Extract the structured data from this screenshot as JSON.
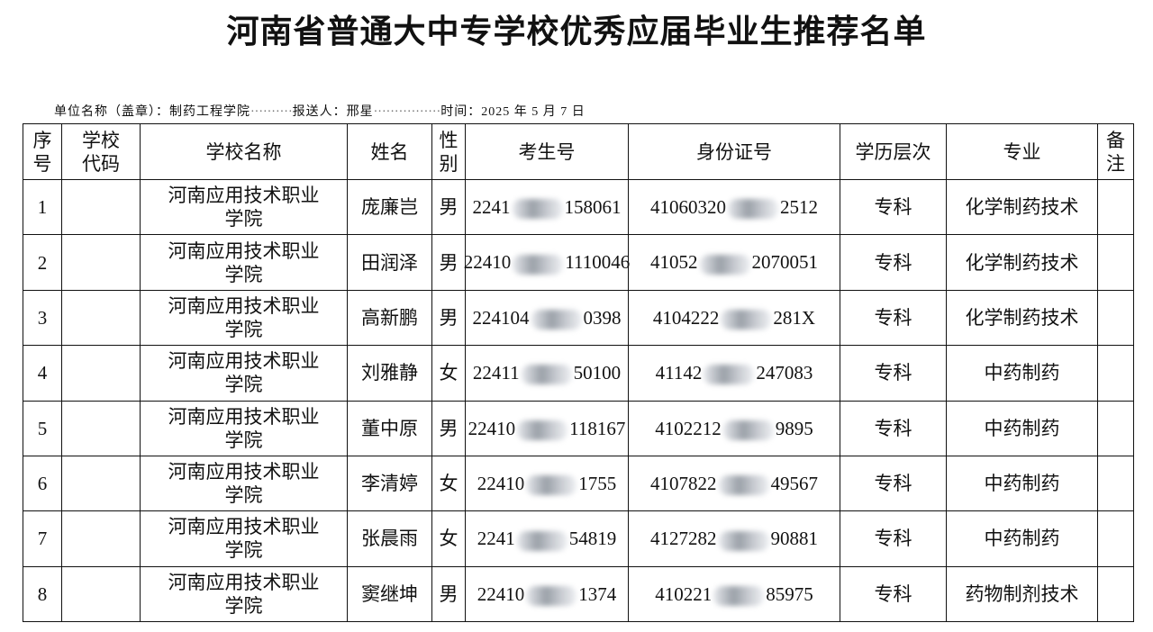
{
  "header": {
    "title": "河南省普通大中专学校优秀应届毕业生推荐名单",
    "unit": "单位名称（盖章）：制药工程学院",
    "reporter": "报送人：邢星",
    "date": "时间：2025 年 5 月 7 日"
  },
  "table": {
    "columns": [
      "序号",
      "学校代码",
      "学校名称",
      "姓名",
      "性别",
      "考生号",
      "身份证号",
      "学历层次",
      "专业",
      "备注"
    ],
    "rows": [
      {
        "no": "1",
        "school": "河南应用技术职业学院",
        "name": "庞廉岂",
        "sex": "男",
        "exam_no": {
          "prefix": "2241",
          "suffix": "158061"
        },
        "id_no": {
          "prefix": "41060320",
          "suffix": "2512"
        },
        "level": "专科",
        "major": "化学制药技术"
      },
      {
        "no": "2",
        "school": "河南应用技术职业学院",
        "name": "田润泽",
        "sex": "男",
        "exam_no": {
          "prefix": "22410",
          "suffix": "1110046"
        },
        "id_no": {
          "prefix": "41052",
          "suffix": "2070051"
        },
        "level": "专科",
        "major": "化学制药技术"
      },
      {
        "no": "3",
        "school": "河南应用技术职业学院",
        "name": "高新鹏",
        "sex": "男",
        "exam_no": {
          "prefix": "224104",
          "suffix": "0398"
        },
        "id_no": {
          "prefix": "4104222",
          "suffix": "281X"
        },
        "level": "专科",
        "major": "化学制药技术"
      },
      {
        "no": "4",
        "school": "河南应用技术职业学院",
        "name": "刘雅静",
        "sex": "女",
        "exam_no": {
          "prefix": "22411",
          "suffix": "50100"
        },
        "id_no": {
          "prefix": "41142",
          "suffix": "247083"
        },
        "level": "专科",
        "major": "中药制药"
      },
      {
        "no": "5",
        "school": "河南应用技术职业学院",
        "name": "董中原",
        "sex": "男",
        "exam_no": {
          "prefix": "22410",
          "suffix": "118167"
        },
        "id_no": {
          "prefix": "4102212",
          "suffix": "9895"
        },
        "level": "专科",
        "major": "中药制药"
      },
      {
        "no": "6",
        "school": "河南应用技术职业学院",
        "name": "李清婷",
        "sex": "女",
        "exam_no": {
          "prefix": "22410",
          "suffix": "1755"
        },
        "id_no": {
          "prefix": "4107822",
          "suffix": "49567"
        },
        "level": "专科",
        "major": "中药制药"
      },
      {
        "no": "7",
        "school": "河南应用技术职业学院",
        "name": "张晨雨",
        "sex": "女",
        "exam_no": {
          "prefix": "2241",
          "suffix": "54819"
        },
        "id_no": {
          "prefix": "4127282",
          "suffix": "90881"
        },
        "level": "专科",
        "major": "中药制药"
      },
      {
        "no": "8",
        "school": "河南应用技术职业学院",
        "name": "窦继坤",
        "sex": "男",
        "exam_no": {
          "prefix": "22410",
          "suffix": "1374"
        },
        "id_no": {
          "prefix": "410221",
          "suffix": "85975"
        },
        "level": "专科",
        "major": "药物制剂技术"
      }
    ]
  }
}
